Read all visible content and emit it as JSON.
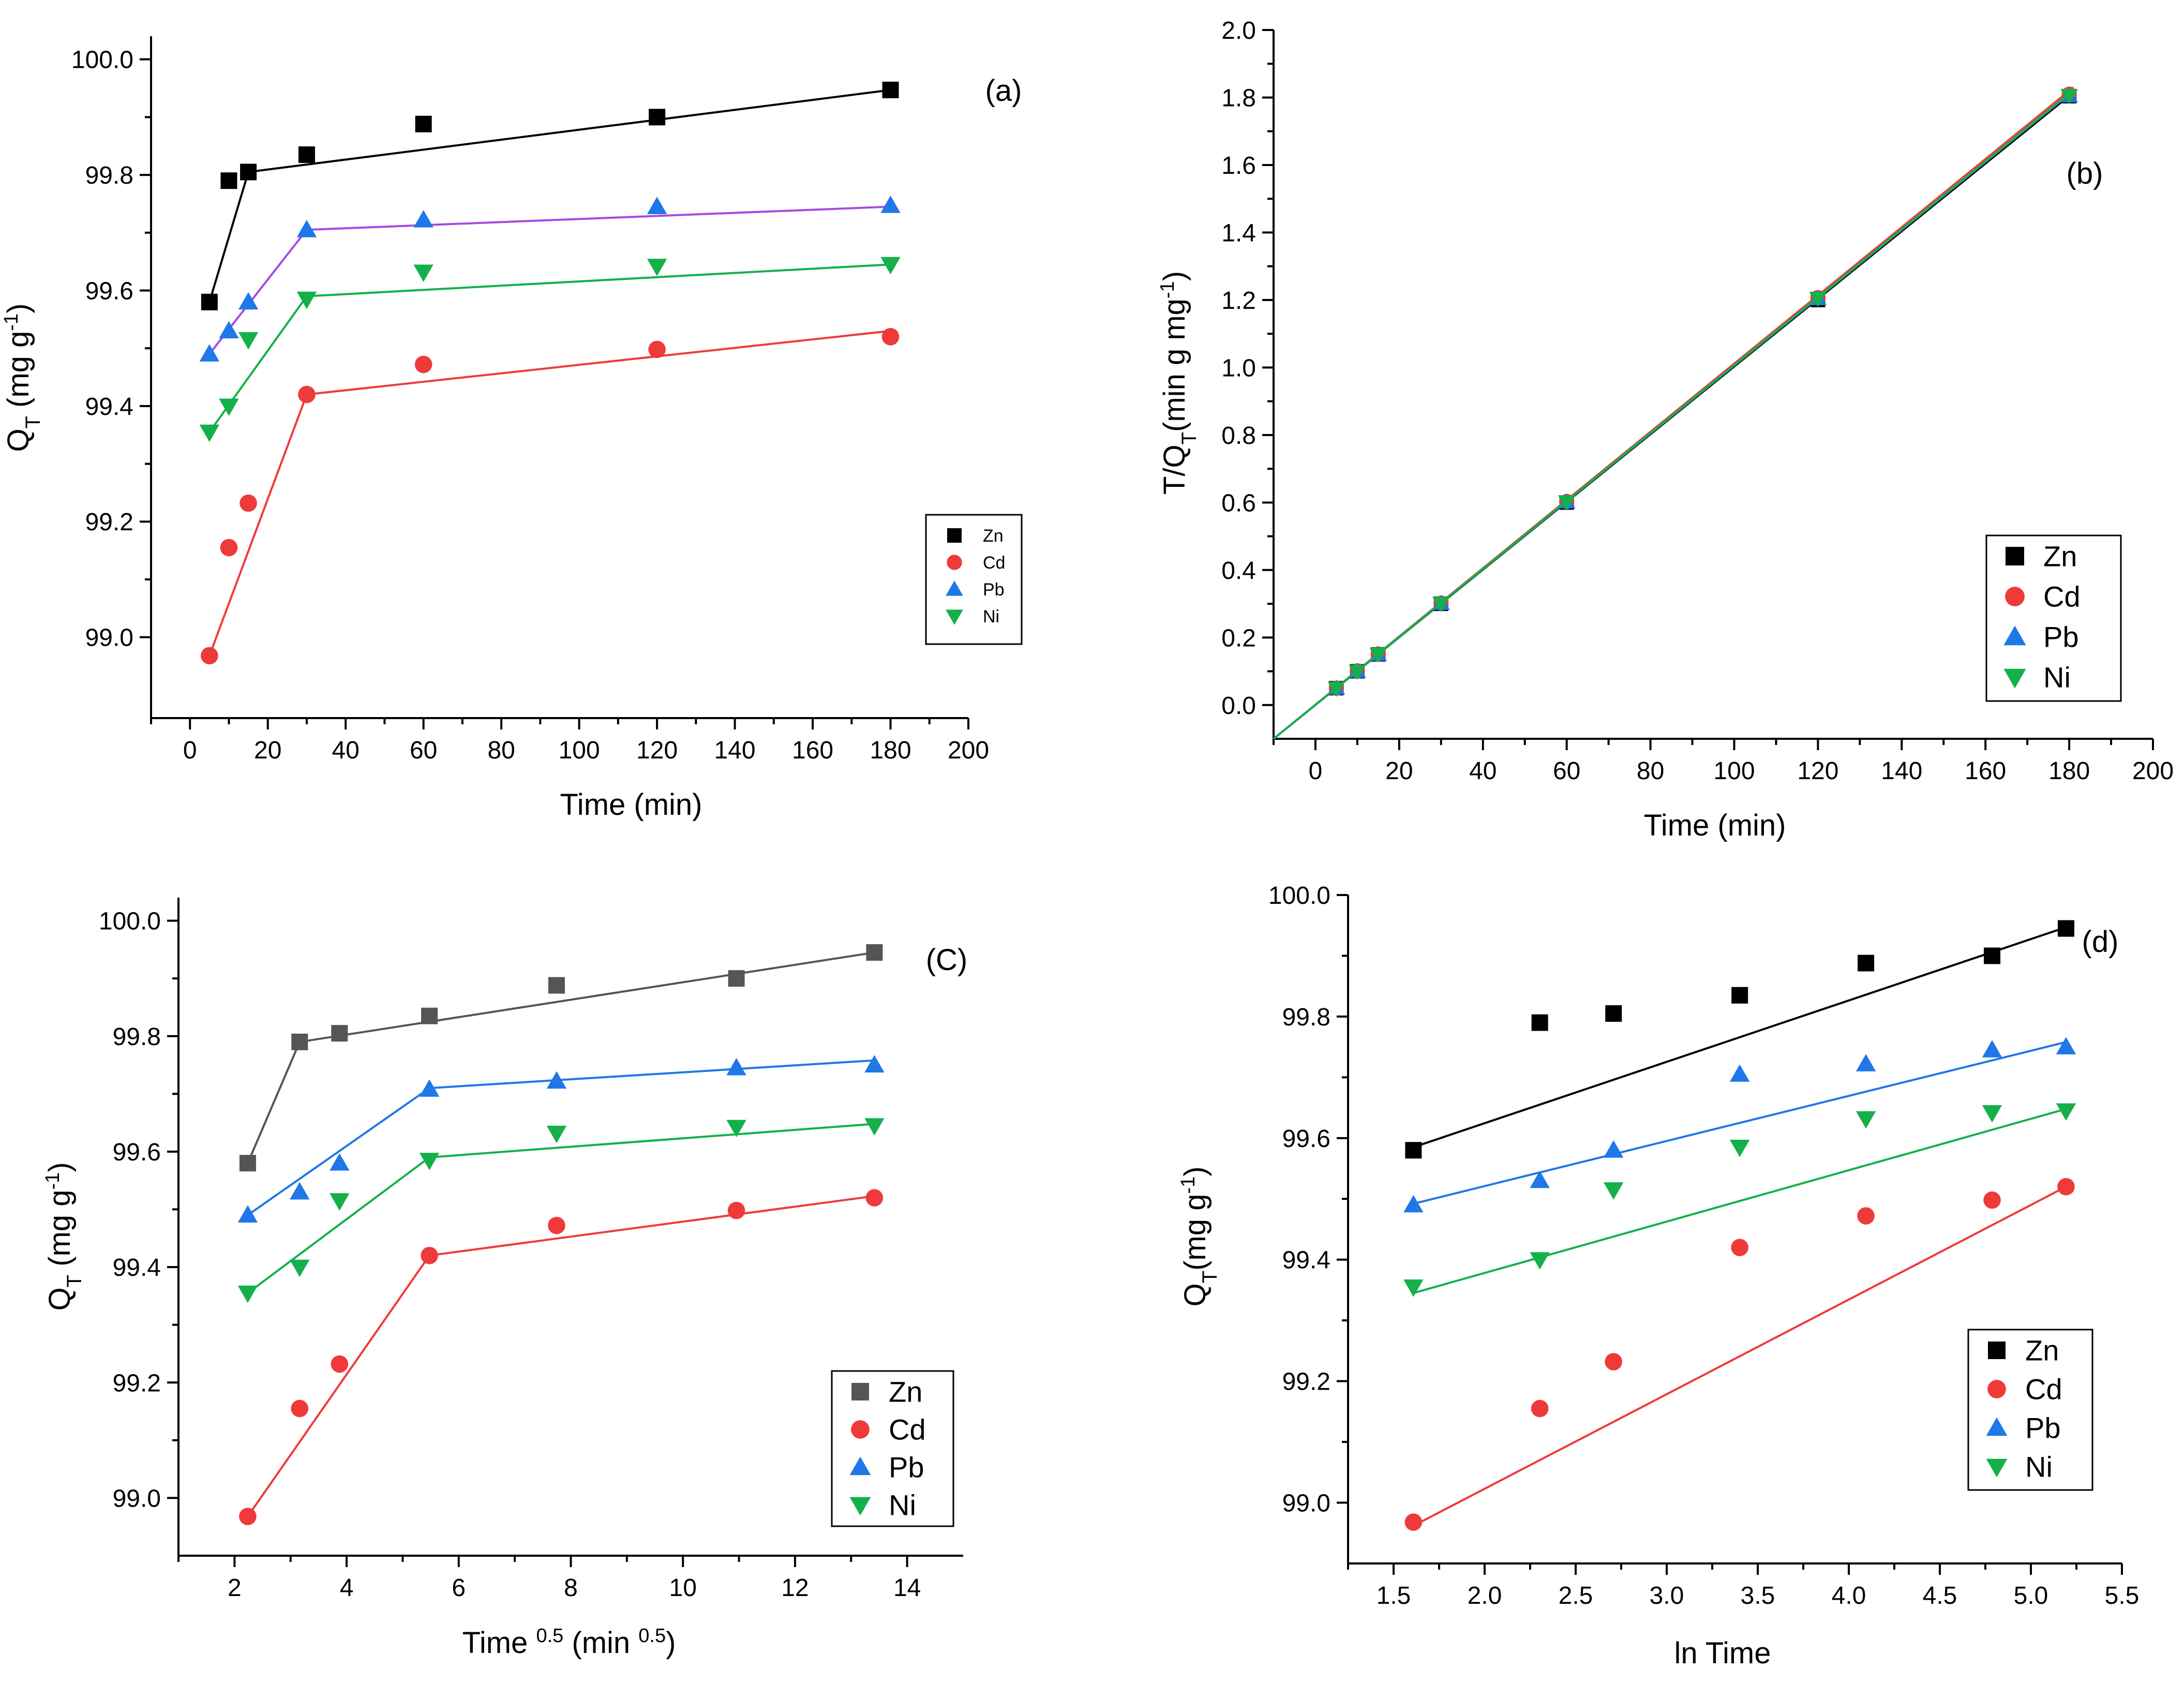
{
  "colors": {
    "Zn": "#000000",
    "Cd": "#ef3a3a",
    "Pb": "#1f77e8",
    "Ni": "#14b04a",
    "Pb_line_a": "#a64ae0",
    "Zn_gray": "#555555"
  },
  "chart_data": [
    {
      "id": "a",
      "type": "scatter",
      "panel_label": "(a)",
      "xlabel": "Time (min)",
      "ylabel_main": "Q",
      "ylabel_sub": "T",
      "ylabel_unit": " (mg g",
      "ylabel_sup": "-1",
      "ylabel_end": ")",
      "xlim": [
        -10,
        200
      ],
      "ylim": [
        98.86,
        100.04
      ],
      "xticks": [
        0,
        20,
        40,
        60,
        80,
        100,
        120,
        140,
        160,
        180,
        200
      ],
      "xtick_labels": [
        "0",
        "20",
        "40",
        "60",
        "80",
        "100",
        "120",
        "140",
        "160",
        "180",
        "200"
      ],
      "yticks": [
        99.0,
        99.2,
        99.4,
        99.6,
        99.8,
        100.0
      ],
      "ytick_labels": [
        "99.0",
        "99.2",
        "99.4",
        "99.6",
        "99.8",
        "100.0"
      ],
      "legend": {
        "position": "right",
        "entries": [
          "Zn",
          "Cd",
          "Pb",
          "Ni"
        ]
      },
      "series": [
        {
          "name": "Zn",
          "marker": "square",
          "x": [
            5,
            10,
            15,
            30,
            60,
            120,
            180
          ],
          "y": [
            99.58,
            99.79,
            99.805,
            99.835,
            99.888,
            99.9,
            99.947
          ],
          "lines": [
            [
              [
                5,
                99.58
              ],
              [
                15,
                99.805
              ]
            ],
            [
              [
                15,
                99.805
              ],
              [
                180,
                99.947
              ]
            ]
          ]
        },
        {
          "name": "Cd",
          "marker": "circle",
          "x": [
            5,
            10,
            15,
            30,
            60,
            120,
            180
          ],
          "y": [
            98.968,
            99.155,
            99.232,
            99.42,
            99.472,
            99.498,
            99.52
          ],
          "lines": [
            [
              [
                5,
                98.968
              ],
              [
                30,
                99.42
              ]
            ],
            [
              [
                30,
                99.42
              ],
              [
                180,
                99.53
              ]
            ]
          ]
        },
        {
          "name": "Pb",
          "marker": "triangle-up",
          "x": [
            5,
            10,
            15,
            30,
            60,
            120,
            180
          ],
          "y": [
            99.49,
            99.53,
            99.58,
            99.705,
            99.722,
            99.745,
            99.747
          ],
          "lines": [
            [
              [
                5,
                99.49
              ],
              [
                30,
                99.705
              ]
            ],
            [
              [
                30,
                99.705
              ],
              [
                180,
                99.745
              ]
            ]
          ]
        },
        {
          "name": "Ni",
          "marker": "triangle-down",
          "x": [
            5,
            10,
            15,
            30,
            60,
            120,
            180
          ],
          "y": [
            99.355,
            99.4,
            99.515,
            99.585,
            99.632,
            99.642,
            99.645
          ],
          "lines": [
            [
              [
                5,
                99.355
              ],
              [
                30,
                99.59
              ]
            ],
            [
              [
                30,
                99.59
              ],
              [
                180,
                99.645
              ]
            ]
          ]
        }
      ]
    },
    {
      "id": "b",
      "type": "scatter",
      "panel_label": "(b)",
      "xlabel": "Time (min)",
      "ylabel_main": "T/Q",
      "ylabel_sub": "T",
      "ylabel_unit": "(min g mg",
      "ylabel_sup": "-1",
      "ylabel_end": ")",
      "xlim": [
        -10,
        200
      ],
      "ylim": [
        -0.1,
        2.0
      ],
      "xticks": [
        0,
        20,
        40,
        60,
        80,
        100,
        120,
        140,
        160,
        180,
        200
      ],
      "xtick_labels": [
        "0",
        "20",
        "40",
        "60",
        "80",
        "100",
        "120",
        "140",
        "160",
        "180",
        "200"
      ],
      "yticks": [
        0.0,
        0.2,
        0.4,
        0.6,
        0.8,
        1.0,
        1.2,
        1.4,
        1.6,
        1.8,
        2.0
      ],
      "ytick_labels": [
        "0.0",
        "0.2",
        "0.4",
        "0.6",
        "0.8",
        "1.0",
        "1.2",
        "1.4",
        "1.6",
        "1.8",
        "2.0"
      ],
      "legend": {
        "position": "bottom-right",
        "entries": [
          "Zn",
          "Cd",
          "Pb",
          "Ni"
        ]
      },
      "series": [
        {
          "name": "Zn",
          "marker": "square",
          "x": [
            5,
            10,
            15,
            30,
            60,
            120,
            180
          ],
          "y": [
            0.05,
            0.1,
            0.15,
            0.3,
            0.6,
            1.2,
            1.804
          ],
          "lines": [
            [
              [
                -10,
                -0.1
              ],
              [
                181,
                1.815
              ]
            ]
          ]
        },
        {
          "name": "Cd",
          "marker": "circle",
          "x": [
            5,
            10,
            15,
            30,
            60,
            120,
            180
          ],
          "y": [
            0.05,
            0.101,
            0.151,
            0.302,
            0.603,
            1.207,
            1.81
          ],
          "lines": [
            [
              [
                -10,
                -0.1
              ],
              [
                181,
                1.83
              ]
            ]
          ]
        },
        {
          "name": "Pb",
          "marker": "triangle-up",
          "x": [
            5,
            10,
            15,
            30,
            60,
            120,
            180
          ],
          "y": [
            0.05,
            0.1,
            0.15,
            0.301,
            0.602,
            1.204,
            1.805
          ],
          "lines": [
            [
              [
                -10,
                -0.1
              ],
              [
                181,
                1.82
              ]
            ]
          ]
        },
        {
          "name": "Ni",
          "marker": "triangle-down",
          "x": [
            5,
            10,
            15,
            30,
            60,
            120,
            180
          ],
          "y": [
            0.05,
            0.1,
            0.151,
            0.301,
            0.602,
            1.205,
            1.806
          ],
          "lines": [
            [
              [
                -10,
                -0.1
              ],
              [
                181,
                1.822
              ]
            ]
          ]
        }
      ]
    },
    {
      "id": "c",
      "type": "scatter",
      "panel_label": "(C)",
      "xlabel_main": "Time ",
      "xlabel_sup1": "0.5",
      "xlabel_mid": " (min ",
      "xlabel_sup2": "0.5",
      "xlabel_end": ")",
      "ylabel_main": "Q",
      "ylabel_sub": "T",
      "ylabel_unit": " (mg g",
      "ylabel_sup": "-1",
      "ylabel_end": ")",
      "xlim": [
        1,
        15
      ],
      "ylim": [
        98.9,
        100.04
      ],
      "xticks": [
        2,
        4,
        6,
        8,
        10,
        12,
        14
      ],
      "xtick_labels": [
        "2",
        "4",
        "6",
        "8",
        "10",
        "12",
        "14"
      ],
      "yticks": [
        99.0,
        99.2,
        99.4,
        99.6,
        99.8,
        100.0
      ],
      "ytick_labels": [
        "99.0",
        "99.2",
        "99.4",
        "99.6",
        "99.8",
        "100.0"
      ],
      "legend": {
        "position": "bottom-right",
        "entries": [
          "Zn",
          "Cd",
          "Pb",
          "Ni"
        ]
      },
      "series": [
        {
          "name": "Zn",
          "marker": "square",
          "x": [
            2.236,
            3.162,
            3.873,
            5.477,
            7.746,
            10.954,
            13.416
          ],
          "y": [
            99.58,
            99.79,
            99.805,
            99.835,
            99.888,
            99.9,
            99.945
          ],
          "lines": [
            [
              [
                2.236,
                99.58
              ],
              [
                3.162,
                99.79
              ]
            ],
            [
              [
                3.162,
                99.79
              ],
              [
                13.416,
                99.945
              ]
            ]
          ]
        },
        {
          "name": "Cd",
          "marker": "circle",
          "x": [
            2.236,
            3.162,
            3.873,
            5.477,
            7.746,
            10.954,
            13.416
          ],
          "y": [
            98.968,
            99.155,
            99.232,
            99.42,
            99.472,
            99.498,
            99.52
          ],
          "lines": [
            [
              [
                2.236,
                98.968
              ],
              [
                5.477,
                99.42
              ]
            ],
            [
              [
                5.477,
                99.42
              ],
              [
                13.416,
                99.523
              ]
            ]
          ]
        },
        {
          "name": "Pb",
          "marker": "triangle-up",
          "x": [
            2.236,
            3.162,
            3.873,
            5.477,
            7.746,
            10.954,
            13.416
          ],
          "y": [
            99.49,
            99.53,
            99.58,
            99.708,
            99.722,
            99.745,
            99.75
          ],
          "lines": [
            [
              [
                2.236,
                99.49
              ],
              [
                5.477,
                99.71
              ]
            ],
            [
              [
                5.477,
                99.71
              ],
              [
                13.416,
                99.758
              ]
            ]
          ]
        },
        {
          "name": "Ni",
          "marker": "triangle-down",
          "x": [
            2.236,
            3.162,
            3.873,
            5.477,
            7.746,
            10.954,
            13.416
          ],
          "y": [
            99.355,
            99.4,
            99.515,
            99.585,
            99.632,
            99.642,
            99.645
          ],
          "lines": [
            [
              [
                2.236,
                99.355
              ],
              [
                5.477,
                99.59
              ]
            ],
            [
              [
                5.477,
                99.59
              ],
              [
                13.416,
                99.648
              ]
            ]
          ]
        }
      ]
    },
    {
      "id": "d",
      "type": "scatter",
      "panel_label": "(d)",
      "xlabel": "ln Time",
      "ylabel_main": "Q",
      "ylabel_sub": "T",
      "ylabel_unit": "(mg g",
      "ylabel_sup": "-1",
      "ylabel_end": ")",
      "xlim": [
        1.25,
        5.5
      ],
      "ylim": [
        98.9,
        100.0
      ],
      "xticks": [
        1.5,
        2.0,
        2.5,
        3.0,
        3.5,
        4.0,
        4.5,
        5.0,
        5.5
      ],
      "xtick_labels": [
        "1.5",
        "2.0",
        "2.5",
        "3.0",
        "3.5",
        "4.0",
        "4.5",
        "5.0",
        "5.5"
      ],
      "yticks": [
        99.0,
        99.2,
        99.4,
        99.6,
        99.8,
        100.0
      ],
      "ytick_labels": [
        "99.0",
        "99.2",
        "99.4",
        "99.6",
        "99.8",
        "100.0"
      ],
      "legend": {
        "position": "bottom-right",
        "entries": [
          "Zn",
          "Cd",
          "Pb",
          "Ni"
        ]
      },
      "series": [
        {
          "name": "Zn",
          "marker": "square",
          "x": [
            1.609,
            2.303,
            2.708,
            3.401,
            4.094,
            4.787,
            5.193
          ],
          "y": [
            99.58,
            99.79,
            99.805,
            99.835,
            99.888,
            99.9,
            99.945
          ],
          "lines": [
            [
              [
                1.609,
                99.585
              ],
              [
                5.193,
                99.947
              ]
            ]
          ]
        },
        {
          "name": "Cd",
          "marker": "circle",
          "x": [
            1.609,
            2.303,
            2.708,
            3.401,
            4.094,
            4.787,
            5.193
          ],
          "y": [
            98.968,
            99.155,
            99.232,
            99.42,
            99.472,
            99.498,
            99.52
          ],
          "lines": [
            [
              [
                1.609,
                98.962
              ],
              [
                5.193,
                99.52
              ]
            ]
          ]
        },
        {
          "name": "Pb",
          "marker": "triangle-up",
          "x": [
            1.609,
            2.303,
            2.708,
            3.401,
            4.094,
            4.787,
            5.193
          ],
          "y": [
            99.49,
            99.53,
            99.58,
            99.705,
            99.722,
            99.745,
            99.75
          ],
          "lines": [
            [
              [
                1.609,
                99.492
              ],
              [
                5.193,
                99.758
              ]
            ]
          ]
        },
        {
          "name": "Ni",
          "marker": "triangle-down",
          "x": [
            1.609,
            2.303,
            2.708,
            3.401,
            4.094,
            4.787,
            5.193
          ],
          "y": [
            99.355,
            99.4,
            99.515,
            99.585,
            99.632,
            99.642,
            99.645
          ],
          "lines": [
            [
              [
                1.609,
                99.345
              ],
              [
                5.193,
                99.648
              ]
            ]
          ]
        }
      ]
    }
  ]
}
